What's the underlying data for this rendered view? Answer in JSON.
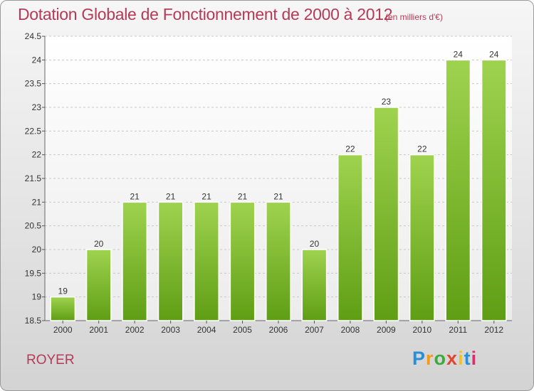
{
  "title": "Dotation Globale de Fonctionnement de 2000 à 2012",
  "unit_note": "(en milliers d'€)",
  "commune": "ROYER",
  "logo": {
    "letters": [
      "P",
      "r",
      "o",
      "x",
      "i",
      "t",
      "i"
    ],
    "colors": [
      "#2a8fd6",
      "#f39a1d",
      "#3daa3d",
      "#e2462f",
      "#f2c21c",
      "#2a8fd6",
      "#d6306e"
    ]
  },
  "chart_data": {
    "type": "bar",
    "categories": [
      "2000",
      "2001",
      "2002",
      "2003",
      "2004",
      "2005",
      "2006",
      "2007",
      "2008",
      "2009",
      "2010",
      "2011",
      "2012"
    ],
    "values": [
      19,
      20,
      21,
      21,
      21,
      21,
      21,
      20,
      22,
      23,
      22,
      24,
      24
    ],
    "data_labels": [
      "19",
      "20",
      "21",
      "21",
      "21",
      "21",
      "21",
      "20",
      "22",
      "23",
      "22",
      "24",
      "24"
    ],
    "ylim": [
      18.5,
      24.5
    ],
    "yticks": [
      18.5,
      19,
      19.5,
      20,
      20.5,
      21,
      21.5,
      22,
      22.5,
      23,
      23.5,
      24,
      24.5
    ],
    "ytick_labels": [
      "18.5",
      "19",
      "19.5",
      "20",
      "20.5",
      "21",
      "21.5",
      "22",
      "22.5",
      "23",
      "23.5",
      "24",
      "24.5"
    ],
    "grid": true,
    "bar_color": "#7cc12e"
  }
}
